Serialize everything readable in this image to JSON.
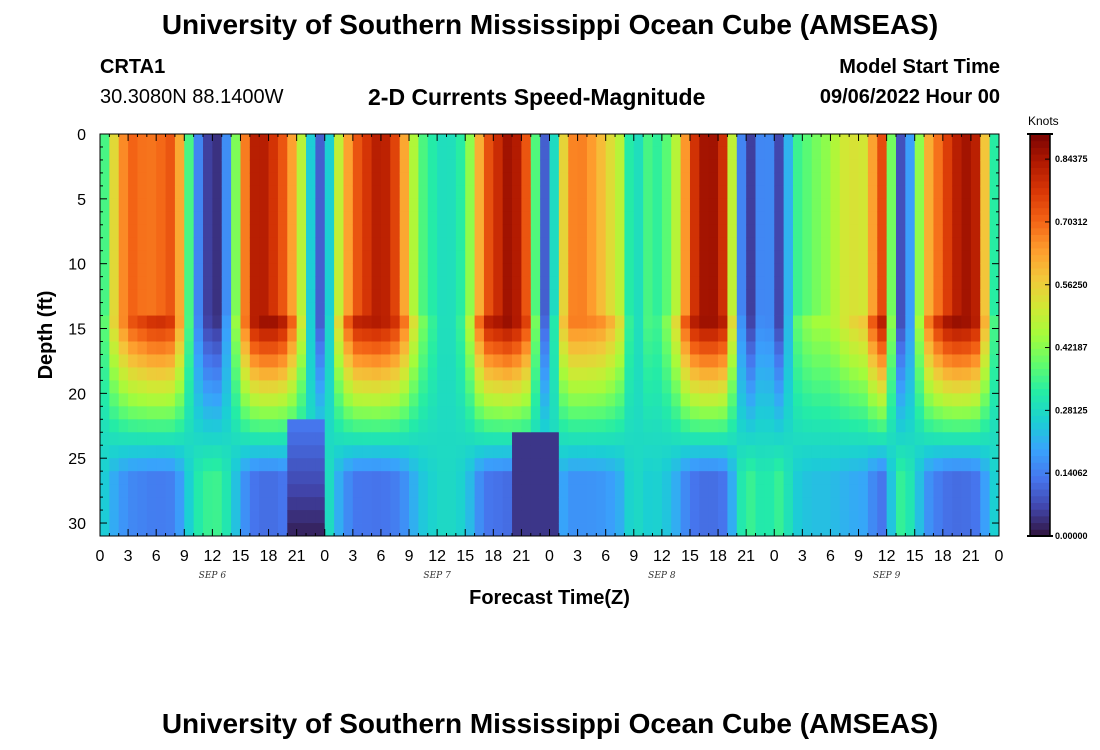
{
  "header": {
    "title": "University of Southern Mississippi Ocean Cube (AMSEAS)",
    "station": "CRTA1",
    "coordinates": "30.3080N  88.1400W",
    "chart_title": "2-D Currents Speed-Magnitude",
    "model_start_label": "Model Start Time",
    "model_start_value": "09/06/2022 Hour 00"
  },
  "footer": {
    "title": "University of Southern Mississippi Ocean Cube (AMSEAS)"
  },
  "colors": {
    "background": "#ffffff",
    "colormap": [
      "#30123b",
      "#4145ab",
      "#4675ed",
      "#39a2fc",
      "#1bcfd4",
      "#24eca6",
      "#61fc6c",
      "#a4fc3b",
      "#d1e834",
      "#f3c63a",
      "#fe9b2d",
      "#f36315",
      "#d93806",
      "#b11901",
      "#7a0402"
    ]
  },
  "chart_data": {
    "type": "heatmap",
    "xlabel": "Forecast Time(Z)",
    "ylabel": "Depth (ft)",
    "x_tick_labels": [
      "0",
      "3",
      "6",
      "9",
      "12",
      "15",
      "18",
      "21",
      "0",
      "3",
      "6",
      "9",
      "12",
      "15",
      "18",
      "21",
      "0",
      "3",
      "6",
      "9",
      "12",
      "15",
      "18",
      "21",
      "0",
      "3",
      "6",
      "9",
      "12",
      "15",
      "18",
      "21",
      "0"
    ],
    "day_labels": [
      {
        "label": "SEP 6",
        "hour": 12
      },
      {
        "label": "SEP 7",
        "hour": 36
      },
      {
        "label": "SEP 8",
        "hour": 60
      },
      {
        "label": "SEP 9",
        "hour": 84
      }
    ],
    "xlim": [
      0,
      96
    ],
    "y_tick_labels": [
      "0",
      "5",
      "10",
      "15",
      "20",
      "25",
      "30"
    ],
    "y_tick_values": [
      0,
      5,
      10,
      15,
      20,
      25,
      30
    ],
    "ylim": [
      0,
      31
    ],
    "y_inverted": true,
    "colorbar": {
      "units": "Knots",
      "labels": [
        "0.00000",
        "0.14062",
        "0.28125",
        "0.42187",
        "0.56250",
        "0.70312",
        "0.84375"
      ],
      "values": [
        0.0,
        0.140625,
        0.28125,
        0.421875,
        0.5625,
        0.703125,
        0.84375
      ],
      "range": [
        0.0,
        0.9
      ]
    },
    "description_of_field": {
      "time_resolution_hours": 1,
      "depth_resolution_ft": 1,
      "high_speed_windows_hours": [
        [
          1,
          9
        ],
        [
          15,
          21
        ],
        [
          25,
          34
        ],
        [
          41,
          46
        ],
        [
          50,
          56
        ],
        [
          63,
          68
        ],
        [
          83,
          85
        ],
        [
          88,
          95
        ]
      ],
      "low_speed_windows_hours": [
        [
          11,
          13
        ],
        [
          23,
          24
        ],
        [
          47,
          48
        ],
        [
          68,
          70
        ],
        [
          72,
          73
        ],
        [
          85,
          86
        ]
      ]
    }
  }
}
